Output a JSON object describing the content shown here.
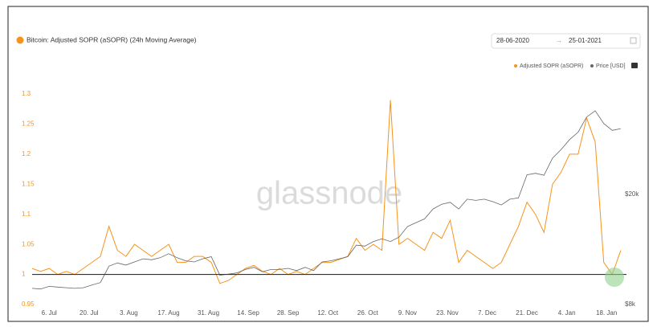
{
  "chart_data": {
    "type": "line",
    "title": "Bitcoin: Adjusted SOPR (aSOPR) (24h Moving Average)",
    "date_range": [
      "28-06-2020",
      "25-01-2021"
    ],
    "watermark": "glassnode",
    "x": [
      2,
      5,
      8,
      11,
      14,
      17,
      20,
      23,
      26,
      29,
      32,
      35,
      38,
      41,
      44,
      47,
      50,
      53,
      56,
      59,
      62,
      65,
      68,
      71,
      74,
      77,
      80,
      83,
      86,
      89,
      92,
      95,
      98,
      101,
      104,
      107,
      110,
      113,
      116,
      119,
      122,
      125,
      128,
      131,
      134,
      137,
      140,
      143,
      146,
      149,
      152,
      155,
      158,
      161,
      164,
      167,
      170,
      173,
      176,
      179,
      182,
      185,
      188,
      191,
      194,
      197,
      200,
      203,
      206,
      209
    ],
    "xlim": [
      2,
      211
    ],
    "xticks": [
      {
        "value": 8,
        "label": "6. Jul"
      },
      {
        "value": 22,
        "label": "20. Jul"
      },
      {
        "value": 36,
        "label": "3. Aug"
      },
      {
        "value": 50,
        "label": "17. Aug"
      },
      {
        "value": 64,
        "label": "31. Aug"
      },
      {
        "value": 78,
        "label": "14. Sep"
      },
      {
        "value": 92,
        "label": "28. Sep"
      },
      {
        "value": 106,
        "label": "12. Oct"
      },
      {
        "value": 120,
        "label": "26. Oct"
      },
      {
        "value": 134,
        "label": "9. Nov"
      },
      {
        "value": 148,
        "label": "23. Nov"
      },
      {
        "value": 162,
        "label": "7. Dec"
      },
      {
        "value": 176,
        "label": "21. Dec"
      },
      {
        "value": 190,
        "label": "4. Jan"
      },
      {
        "value": 204,
        "label": "18. Jan"
      }
    ],
    "ylim": [
      0.95,
      1.3
    ],
    "yticks": [
      0.95,
      1,
      1.05,
      1.1,
      1.15,
      1.2,
      1.25,
      1.3
    ],
    "y2lim": [
      8000,
      46000
    ],
    "y2ticks": [
      {
        "value": 8000,
        "label": "$8k"
      },
      {
        "value": 20000,
        "label": "$20k"
      }
    ],
    "y2_log": true,
    "reference_line": 1,
    "series": [
      {
        "name": "Adjusted SOPR (aSOPR)",
        "color": "#f7931a",
        "values": [
          1.01,
          1.005,
          1.01,
          1.0,
          1.005,
          1.0,
          1.01,
          1.02,
          1.03,
          1.08,
          1.04,
          1.03,
          1.05,
          1.04,
          1.03,
          1.04,
          1.05,
          1.02,
          1.02,
          1.03,
          1.03,
          1.02,
          0.985,
          0.99,
          1.0,
          1.01,
          1.015,
          1.005,
          1.0,
          1.01,
          1.0,
          1.005,
          1.0,
          1.01,
          1.02,
          1.02,
          1.025,
          1.03,
          1.06,
          1.04,
          1.05,
          1.04,
          1.29,
          1.05,
          1.06,
          1.05,
          1.04,
          1.07,
          1.06,
          1.09,
          1.02,
          1.04,
          1.03,
          1.02,
          1.01,
          1.02,
          1.05,
          1.08,
          1.12,
          1.1,
          1.07,
          1.15,
          1.17,
          1.2,
          1.2,
          1.26,
          1.22,
          1.02,
          1.0,
          1.04
        ]
      },
      {
        "name": "Price [USD]",
        "color": "#666666",
        "axis": "y2",
        "values": [
          9150,
          9100,
          9300,
          9250,
          9200,
          9150,
          9200,
          9400,
          9600,
          11000,
          11300,
          11100,
          11400,
          11700,
          11600,
          11800,
          12200,
          11800,
          11500,
          11400,
          11700,
          11900,
          10200,
          10300,
          10400,
          10700,
          10900,
          10500,
          10700,
          10700,
          10800,
          10600,
          10900,
          10600,
          11400,
          11500,
          11700,
          11900,
          13100,
          13000,
          13500,
          13800,
          13500,
          14000,
          15300,
          15800,
          16300,
          17700,
          18400,
          18700,
          17700,
          19200,
          19000,
          19200,
          18800,
          18300,
          19200,
          19400,
          23500,
          23800,
          23400,
          27000,
          29000,
          31500,
          33500,
          38000,
          40000,
          36000,
          34000,
          34500
        ]
      }
    ]
  }
}
